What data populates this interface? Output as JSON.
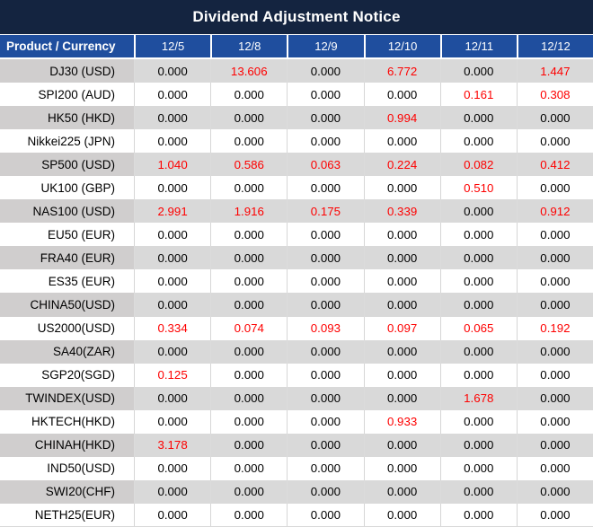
{
  "title": "Dividend Adjustment Notice",
  "colors": {
    "title_bar_bg": "#142440",
    "header_row_bg": "#1f4e9e",
    "header_text": "#ffffff",
    "row_gray_bg": "#d9d9d9",
    "row_product_gray_bg": "#d0cece",
    "row_white_bg": "#ffffff",
    "value_normal": "#000000",
    "value_highlight_red": "#fe0000"
  },
  "table": {
    "product_header": "Product / Currency",
    "date_headers": [
      "12/5",
      "12/8",
      "12/9",
      "12/10",
      "12/11",
      "12/12"
    ],
    "rows": [
      {
        "product": "DJ30 (USD)",
        "values": [
          "0.000",
          "13.606",
          "0.000",
          "6.772",
          "0.000",
          "1.447"
        ]
      },
      {
        "product": "SPI200 (AUD)",
        "values": [
          "0.000",
          "0.000",
          "0.000",
          "0.000",
          "0.161",
          "0.308"
        ]
      },
      {
        "product": "HK50 (HKD)",
        "values": [
          "0.000",
          "0.000",
          "0.000",
          "0.994",
          "0.000",
          "0.000"
        ]
      },
      {
        "product": "Nikkei225 (JPN)",
        "values": [
          "0.000",
          "0.000",
          "0.000",
          "0.000",
          "0.000",
          "0.000"
        ]
      },
      {
        "product": "SP500 (USD)",
        "values": [
          "1.040",
          "0.586",
          "0.063",
          "0.224",
          "0.082",
          "0.412"
        ]
      },
      {
        "product": "UK100 (GBP)",
        "values": [
          "0.000",
          "0.000",
          "0.000",
          "0.000",
          "0.510",
          "0.000"
        ]
      },
      {
        "product": "NAS100 (USD)",
        "values": [
          "2.991",
          "1.916",
          "0.175",
          "0.339",
          "0.000",
          "0.912"
        ]
      },
      {
        "product": "EU50 (EUR)",
        "values": [
          "0.000",
          "0.000",
          "0.000",
          "0.000",
          "0.000",
          "0.000"
        ]
      },
      {
        "product": "FRA40 (EUR)",
        "values": [
          "0.000",
          "0.000",
          "0.000",
          "0.000",
          "0.000",
          "0.000"
        ]
      },
      {
        "product": "ES35 (EUR)",
        "values": [
          "0.000",
          "0.000",
          "0.000",
          "0.000",
          "0.000",
          "0.000"
        ]
      },
      {
        "product": "CHINA50(USD)",
        "values": [
          "0.000",
          "0.000",
          "0.000",
          "0.000",
          "0.000",
          "0.000"
        ]
      },
      {
        "product": "US2000(USD)",
        "values": [
          "0.334",
          "0.074",
          "0.093",
          "0.097",
          "0.065",
          "0.192"
        ]
      },
      {
        "product": "SA40(ZAR)",
        "values": [
          "0.000",
          "0.000",
          "0.000",
          "0.000",
          "0.000",
          "0.000"
        ]
      },
      {
        "product": "SGP20(SGD)",
        "values": [
          "0.125",
          "0.000",
          "0.000",
          "0.000",
          "0.000",
          "0.000"
        ]
      },
      {
        "product": "TWINDEX(USD)",
        "values": [
          "0.000",
          "0.000",
          "0.000",
          "0.000",
          "1.678",
          "0.000"
        ]
      },
      {
        "product": "HKTECH(HKD)",
        "values": [
          "0.000",
          "0.000",
          "0.000",
          "0.933",
          "0.000",
          "0.000"
        ]
      },
      {
        "product": "CHINAH(HKD)",
        "values": [
          "3.178",
          "0.000",
          "0.000",
          "0.000",
          "0.000",
          "0.000"
        ]
      },
      {
        "product": "IND50(USD)",
        "values": [
          "0.000",
          "0.000",
          "0.000",
          "0.000",
          "0.000",
          "0.000"
        ]
      },
      {
        "product": "SWI20(CHF)",
        "values": [
          "0.000",
          "0.000",
          "0.000",
          "0.000",
          "0.000",
          "0.000"
        ]
      },
      {
        "product": "NETH25(EUR)",
        "values": [
          "0.000",
          "0.000",
          "0.000",
          "0.000",
          "0.000",
          "0.000"
        ]
      }
    ]
  }
}
